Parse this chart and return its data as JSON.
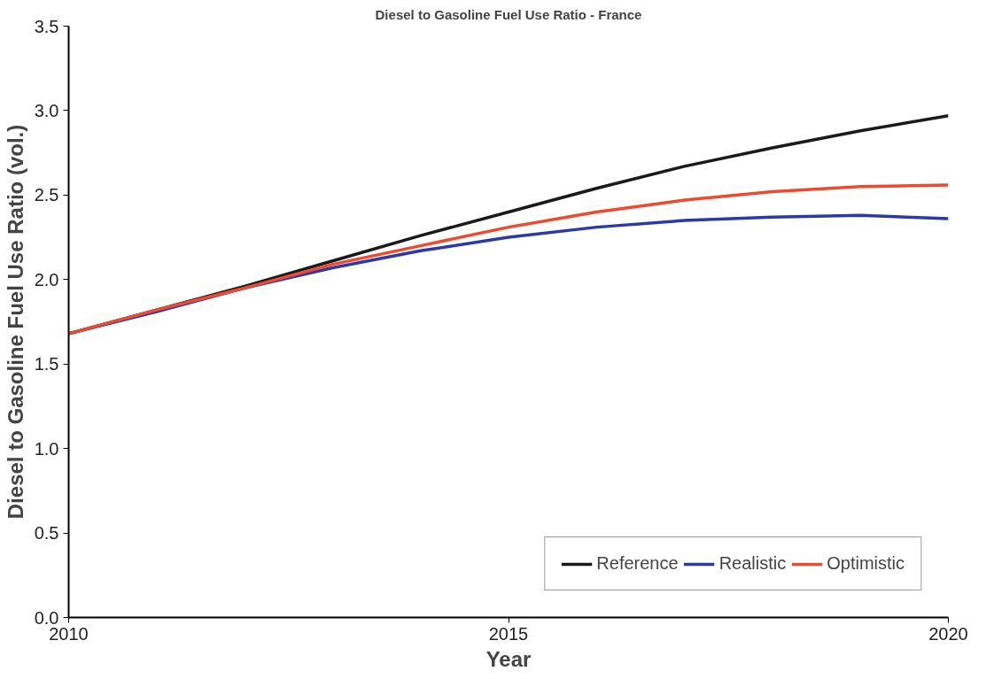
{
  "chart_data": {
    "type": "line",
    "title": "Diesel to Gasoline Fuel Use Ratio - France",
    "xlabel": "Year",
    "ylabel": "Diesel to Gasoline Fuel Use Ratio (vol.)",
    "x": [
      2010,
      2011,
      2012,
      2013,
      2014,
      2015,
      2016,
      2017,
      2018,
      2019,
      2020
    ],
    "series": [
      {
        "name": "Reference",
        "color": "#1a1a1a",
        "values": [
          1.68,
          1.82,
          1.96,
          2.11,
          2.26,
          2.4,
          2.54,
          2.67,
          2.78,
          2.88,
          2.97
        ]
      },
      {
        "name": "Realistic",
        "color": "#2b3aa8",
        "values": [
          1.68,
          1.81,
          1.95,
          2.07,
          2.17,
          2.25,
          2.31,
          2.35,
          2.37,
          2.38,
          2.36
        ]
      },
      {
        "name": "Optimistic",
        "color": "#f04a2e",
        "values": [
          1.68,
          1.82,
          1.95,
          2.09,
          2.2,
          2.31,
          2.4,
          2.47,
          2.52,
          2.55,
          2.56
        ]
      }
    ],
    "xlim": [
      2010,
      2020
    ],
    "ylim": [
      0,
      3.5
    ],
    "xticks": [
      2010,
      2015,
      2020
    ],
    "yticks": [
      {
        "value": 0,
        "label": "0.0"
      },
      {
        "value": 0.5,
        "label": "0.5"
      },
      {
        "value": 1,
        "label": "1.0"
      },
      {
        "value": 1.5,
        "label": "1.5"
      },
      {
        "value": 2,
        "label": "2.0"
      },
      {
        "value": 2.5,
        "label": "2.5"
      },
      {
        "value": 3,
        "label": "3.0"
      },
      {
        "value": 3.5,
        "label": "3.5"
      }
    ],
    "grid": false,
    "legend": "bottom right",
    "marker": "none",
    "line_style": "solid"
  }
}
